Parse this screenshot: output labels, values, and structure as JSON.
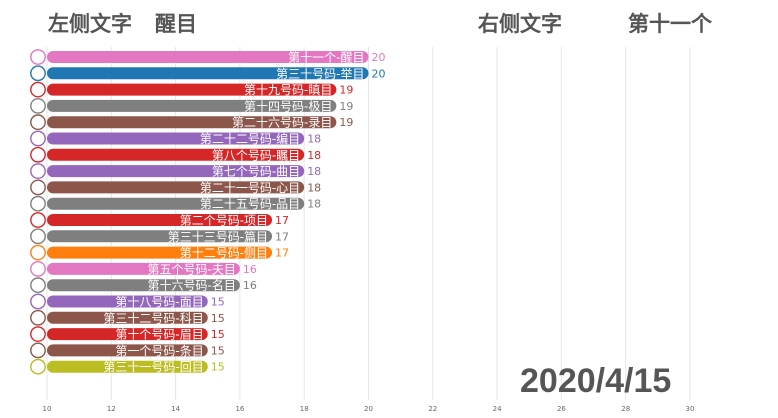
{
  "header": {
    "left_label": "左侧文字",
    "left_value": "醒目",
    "right_label": "右侧文字",
    "right_value": "第十一个"
  },
  "date": "2020/4/15",
  "chart_data": {
    "type": "bar",
    "orientation": "horizontal",
    "xlim": [
      10,
      30
    ],
    "xticks": [
      10,
      12,
      14,
      16,
      18,
      20,
      22,
      24,
      26,
      28,
      30
    ],
    "grid": true,
    "bars": [
      {
        "label": "第十一个-醒目",
        "value": 20,
        "color": "#e377c2"
      },
      {
        "label": "第三十号码-举目",
        "value": 20,
        "color": "#1f77b4"
      },
      {
        "label": "第十九号码-瞋目",
        "value": 19,
        "color": "#d62728"
      },
      {
        "label": "第十四号码-极目",
        "value": 19,
        "color": "#7f7f7f"
      },
      {
        "label": "第二十六号码-录目",
        "value": 19,
        "color": "#8c564b"
      },
      {
        "label": "第二十二号码-编目",
        "value": 18,
        "color": "#9467bd"
      },
      {
        "label": "第八个号码-瞩目",
        "value": 18,
        "color": "#d62728"
      },
      {
        "label": "第七个号码-曲目",
        "value": 18,
        "color": "#9467bd"
      },
      {
        "label": "第二十一号码-心目",
        "value": 18,
        "color": "#8c564b"
      },
      {
        "label": "第二十五号码-品目",
        "value": 18,
        "color": "#7f7f7f"
      },
      {
        "label": "第二个号码-项目",
        "value": 17,
        "color": "#d62728"
      },
      {
        "label": "第三十三号码-篇目",
        "value": 17,
        "color": "#7f7f7f"
      },
      {
        "label": "第十二号码-侧目",
        "value": 17,
        "color": "#ff7f0e"
      },
      {
        "label": "第五个号码-夫目",
        "value": 16,
        "color": "#e377c2"
      },
      {
        "label": "第十六号码-名目",
        "value": 16,
        "color": "#7f7f7f"
      },
      {
        "label": "第十八号码-面目",
        "value": 15,
        "color": "#9467bd"
      },
      {
        "label": "第三十二号码-科目",
        "value": 15,
        "color": "#8c564b"
      },
      {
        "label": "第十个号码-眉目",
        "value": 15,
        "color": "#d62728"
      },
      {
        "label": "第一个号码-条目",
        "value": 15,
        "color": "#8c564b"
      },
      {
        "label": "第三十一号码-回目",
        "value": 15,
        "color": "#bcbd22"
      }
    ]
  }
}
